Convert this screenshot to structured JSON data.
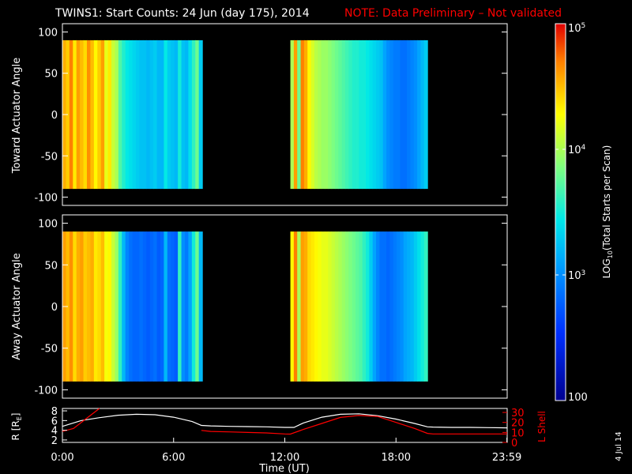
{
  "header": {
    "title": "TWINS1: Start Counts: 24 Jun (day 175), 2014",
    "note": "NOTE: Data Preliminary – Not validated"
  },
  "side_date": "4 Jul 14",
  "colors": {
    "background": "#000000",
    "axes": "#ffffff",
    "note": "#ff0000",
    "r_line": "#ffffff",
    "lshell_line": "#ff0000"
  },
  "chart_data": [
    {
      "type": "heatmap",
      "name": "toward-panel",
      "ylabel": "Toward Actuator Angle",
      "ylim": [
        -110,
        110
      ],
      "yticks": [
        100,
        50,
        0,
        -50,
        -100
      ],
      "xlim": [
        0,
        24
      ],
      "data_extent_y": [
        -90,
        90
      ],
      "segments": [
        {
          "x_start": 0.0,
          "x_end": 7.55,
          "values": [
            4.55,
            4.45,
            4.7,
            4.35,
            4.6,
            4.5,
            4.4,
            4.65,
            4.5,
            4.3,
            4.45,
            4.6,
            4.2,
            4.35,
            4.1,
            4.0,
            3.7,
            3.55,
            3.45,
            3.4,
            3.35,
            3.3,
            3.25,
            3.25,
            3.2,
            3.25,
            3.3,
            3.2,
            3.2,
            3.45,
            3.3,
            3.25,
            3.2,
            3.5,
            3.25,
            3.2,
            3.4,
            3.6,
            3.8,
            3.3
          ]
        },
        {
          "x_start": 12.3,
          "x_end": 19.7,
          "values": [
            4.0,
            4.6,
            3.8,
            4.7,
            4.55,
            4.3,
            4.15,
            4.05,
            4.0,
            3.95,
            3.95,
            3.9,
            3.85,
            3.8,
            3.75,
            3.7,
            3.65,
            3.6,
            3.55,
            3.55,
            3.5,
            3.5,
            3.45,
            3.4,
            3.35,
            3.3,
            3.25,
            3.1,
            3.0,
            2.95,
            2.9,
            2.9,
            2.85,
            2.85,
            2.9,
            2.95,
            3.0,
            3.1,
            3.2,
            3.3
          ]
        }
      ]
    },
    {
      "type": "heatmap",
      "name": "away-panel",
      "ylabel": "Away Actuator Angle",
      "ylim": [
        -110,
        110
      ],
      "yticks": [
        100,
        50,
        0,
        -50,
        -100
      ],
      "xlim": [
        0,
        24
      ],
      "data_extent_y": [
        -90,
        90
      ],
      "segments": [
        {
          "x_start": 0.0,
          "x_end": 7.55,
          "values": [
            4.6,
            4.5,
            4.65,
            4.4,
            4.55,
            4.6,
            4.45,
            4.5,
            4.55,
            4.35,
            4.4,
            4.5,
            4.25,
            4.3,
            4.1,
            3.95,
            3.6,
            3.2,
            2.95,
            2.85,
            2.8,
            2.8,
            2.85,
            2.8,
            2.75,
            2.8,
            2.85,
            2.75,
            2.8,
            3.2,
            2.85,
            2.8,
            2.75,
            3.6,
            3.0,
            2.9,
            3.1,
            3.5,
            3.8,
            3.2
          ]
        },
        {
          "x_start": 12.3,
          "x_end": 19.7,
          "values": [
            4.3,
            4.7,
            4.0,
            4.6,
            4.55,
            4.4,
            4.35,
            4.3,
            4.25,
            4.2,
            4.2,
            4.15,
            4.1,
            4.05,
            4.0,
            3.95,
            3.9,
            3.85,
            3.8,
            3.75,
            3.7,
            3.6,
            3.5,
            3.3,
            3.1,
            2.95,
            2.85,
            2.85,
            2.8,
            2.85,
            2.9,
            2.95,
            3.0,
            3.1,
            3.15,
            3.2,
            3.3,
            3.4,
            3.5,
            3.6
          ]
        }
      ]
    },
    {
      "type": "line",
      "name": "orbit-panel",
      "ylabel": "R [R",
      "ylabel_sub": "E",
      "ylabel_end": "]",
      "ylabel_right": "L Shell",
      "ylim": [
        1.5,
        8.5
      ],
      "yticks": [
        8,
        6,
        4,
        2
      ],
      "ylim_right": [
        0,
        34
      ],
      "yticks_right": [
        30,
        20,
        10,
        0
      ],
      "xlim": [
        0,
        24
      ],
      "x_tick_labels": [
        {
          "x": 0,
          "label": "0:00"
        },
        {
          "x": 6,
          "label": "6:00"
        },
        {
          "x": 12,
          "label": "12:00"
        },
        {
          "x": 18,
          "label": "18:00"
        },
        {
          "x": 23.983,
          "label": "23:59"
        }
      ],
      "xlabel": "Time (UT)",
      "series": [
        {
          "name": "R",
          "axis": "left",
          "x": [
            0,
            1,
            2,
            3,
            4,
            5,
            6,
            7,
            7.5,
            8,
            9,
            10,
            11,
            12,
            12.5,
            13,
            14,
            15,
            16,
            17,
            18,
            19,
            19.7,
            20,
            21,
            22,
            23,
            24
          ],
          "y": [
            4.8,
            6.0,
            6.6,
            7.1,
            7.3,
            7.2,
            6.7,
            5.8,
            5.0,
            4.9,
            4.8,
            4.75,
            4.7,
            4.6,
            4.6,
            5.5,
            6.7,
            7.3,
            7.4,
            7.0,
            6.3,
            5.4,
            4.7,
            4.65,
            4.6,
            4.6,
            4.55,
            4.5
          ]
        },
        {
          "name": "L Shell",
          "axis": "right",
          "x": [
            0,
            0.6,
            1.3,
            2.0,
            2.05,
            7.4,
            7.5,
            8,
            9,
            10,
            11,
            12,
            12.3,
            13,
            14,
            15,
            16,
            17,
            18,
            19,
            19.7,
            20,
            21,
            22,
            23,
            24
          ],
          "y": [
            11,
            14,
            24,
            34,
            null,
            null,
            12,
            11,
            10.5,
            10,
            9.5,
            8.5,
            8.3,
            13,
            19,
            25,
            27,
            26,
            20,
            14,
            9,
            8.5,
            8.5,
            8.5,
            8.5,
            8.5
          ]
        }
      ]
    },
    {
      "type": "heatmap",
      "name": "colorbar",
      "ylabel": "LOG",
      "ylabel_sub": "10",
      "ylabel_end": "(Total Starts per Scan)",
      "range_log10": [
        2,
        5
      ],
      "tick_labels": [
        {
          "value": 5,
          "base": "10",
          "exp": "5"
        },
        {
          "value": 4,
          "base": "10",
          "exp": "4"
        },
        {
          "value": 3,
          "base": "10",
          "exp": "3"
        },
        {
          "value": 2,
          "base": "100",
          "exp": ""
        }
      ]
    }
  ]
}
